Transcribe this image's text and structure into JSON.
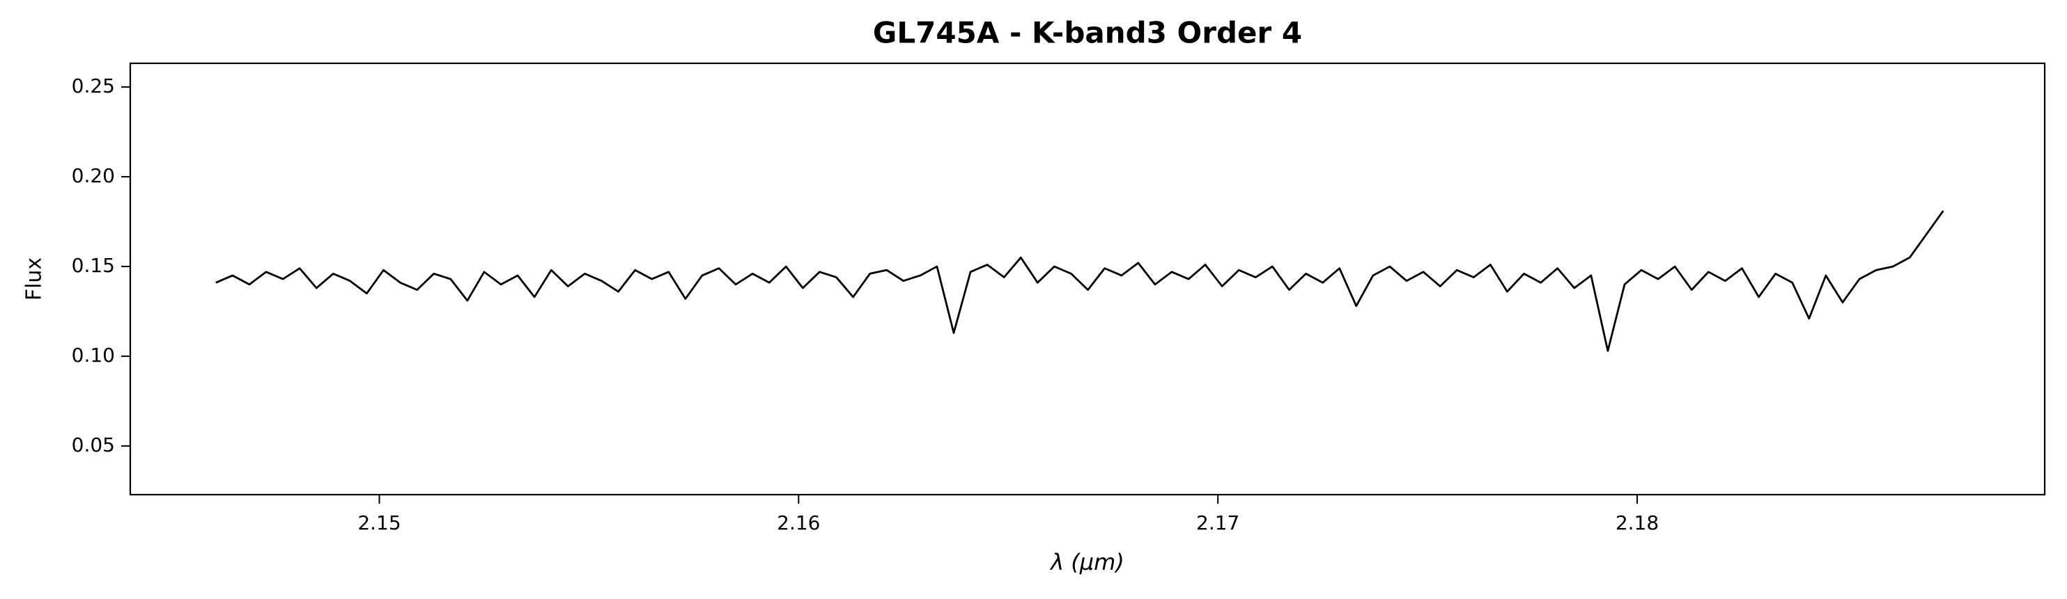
{
  "chart_data": {
    "type": "line",
    "title": "GL745A - K-band3 Order 4",
    "xlabel": "λ (μm)",
    "ylabel": "Flux",
    "color": "#000000",
    "x": [
      2.1461,
      2.1465,
      2.1469,
      2.1473,
      2.1477,
      2.1481,
      2.1485,
      2.1489,
      2.1493,
      2.1497,
      2.1501,
      2.1505,
      2.1509,
      2.1513,
      2.1517,
      2.1521,
      2.1525,
      2.1529,
      2.1533,
      2.1537,
      2.1541,
      2.1545,
      2.1549,
      2.1553,
      2.1557,
      2.1561,
      2.1565,
      2.1569,
      2.1573,
      2.1577,
      2.1581,
      2.1585,
      2.1589,
      2.1593,
      2.1597,
      2.1601,
      2.1605,
      2.1609,
      2.1613,
      2.1617,
      2.1621,
      2.1625,
      2.1629,
      2.1633,
      2.1637,
      2.1641,
      2.1645,
      2.1649,
      2.1653,
      2.1657,
      2.1661,
      2.1665,
      2.1669,
      2.1673,
      2.1677,
      2.1681,
      2.1685,
      2.1689,
      2.1693,
      2.1697,
      2.1701,
      2.1705,
      2.1709,
      2.1713,
      2.1717,
      2.1721,
      2.1725,
      2.1729,
      2.1733,
      2.1737,
      2.1741,
      2.1745,
      2.1749,
      2.1753,
      2.1757,
      2.1761,
      2.1765,
      2.1769,
      2.1773,
      2.1777,
      2.1781,
      2.1785,
      2.1789,
      2.1793,
      2.1797,
      2.1801,
      2.1805,
      2.1809,
      2.1813,
      2.1817,
      2.1821,
      2.1825,
      2.1829,
      2.1833,
      2.1837,
      2.1841,
      2.1845,
      2.1849,
      2.1853,
      2.1857,
      2.1861,
      2.1865,
      2.1869,
      2.1873
    ],
    "values": [
      0.141,
      0.145,
      0.14,
      0.147,
      0.143,
      0.149,
      0.138,
      0.146,
      0.142,
      0.135,
      0.148,
      0.141,
      0.137,
      0.146,
      0.143,
      0.131,
      0.147,
      0.14,
      0.145,
      0.133,
      0.148,
      0.139,
      0.146,
      0.142,
      0.136,
      0.148,
      0.143,
      0.147,
      0.132,
      0.145,
      0.149,
      0.14,
      0.146,
      0.141,
      0.15,
      0.138,
      0.147,
      0.144,
      0.133,
      0.146,
      0.148,
      0.142,
      0.145,
      0.15,
      0.113,
      0.147,
      0.151,
      0.144,
      0.155,
      0.141,
      0.15,
      0.146,
      0.137,
      0.149,
      0.145,
      0.152,
      0.14,
      0.147,
      0.143,
      0.151,
      0.139,
      0.148,
      0.144,
      0.15,
      0.137,
      0.146,
      0.141,
      0.149,
      0.128,
      0.145,
      0.15,
      0.142,
      0.147,
      0.139,
      0.148,
      0.144,
      0.151,
      0.136,
      0.146,
      0.141,
      0.149,
      0.138,
      0.145,
      0.103,
      0.14,
      0.148,
      0.143,
      0.15,
      0.137,
      0.147,
      0.142,
      0.149,
      0.133,
      0.146,
      0.141,
      0.121,
      0.145,
      0.13,
      0.143,
      0.148,
      0.15,
      0.155,
      0.168,
      0.181
    ],
    "xlim": [
      2.14406,
      2.18972
    ],
    "xticks": [
      2.15,
      2.16,
      2.17,
      2.18
    ],
    "ylim": [
      0.0229,
      0.2632
    ],
    "yticks": [
      0.05,
      {
        "value": 0.1,
        "label": "0.10"
      },
      0.15,
      {
        "value": 0.2,
        "label": "0.20"
      },
      0.25
    ],
    "grid": false
  }
}
